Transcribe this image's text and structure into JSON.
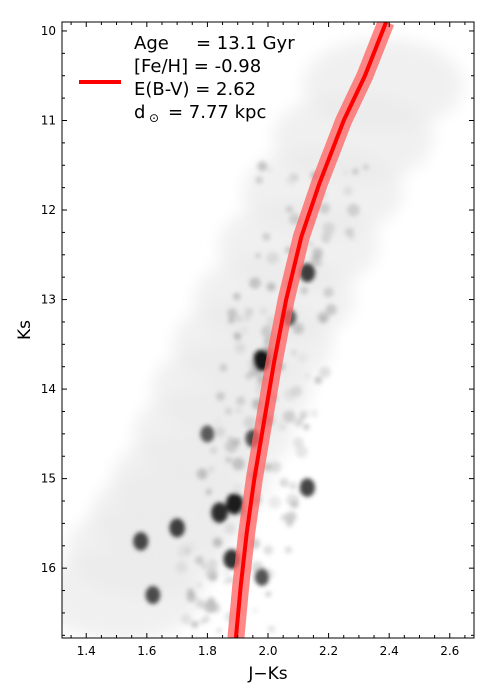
{
  "chart_data": {
    "type": "line",
    "title": "",
    "xlabel": "J−Ks",
    "ylabel": "Ks",
    "xlim": [
      1.32,
      2.68
    ],
    "ylim": [
      16.78,
      9.9
    ],
    "y_inverted": true,
    "x_ticks": [
      1.4,
      1.6,
      1.8,
      2.0,
      2.2,
      2.4,
      2.6
    ],
    "x_tick_labels": [
      "1.4",
      "1.6",
      "1.8",
      "2.0",
      "2.2",
      "2.4",
      "2.6"
    ],
    "y_ticks": [
      10,
      11,
      12,
      13,
      14,
      15,
      16
    ],
    "y_tick_labels": [
      "10",
      "11",
      "12",
      "13",
      "14",
      "15",
      "16"
    ],
    "grid": false,
    "legend_position": "top-left",
    "legend": {
      "age": {
        "label": "Age",
        "value": "= 13.1 Gyr"
      },
      "feh": "[Fe/H] = -0.98",
      "ebv": "E(B-V) = 2.62",
      "dist": {
        "label": "d",
        "sub": "⊙",
        "value": "= 7.77 kpc"
      }
    },
    "series": [
      {
        "kind": "isochrone",
        "color": "#ff0000",
        "band_color": "#ff6060",
        "points": [
          {
            "x": 1.894,
            "y": 16.78
          },
          {
            "x": 1.91,
            "y": 16.2
          },
          {
            "x": 1.93,
            "y": 15.6
          },
          {
            "x": 1.955,
            "y": 15.0
          },
          {
            "x": 1.985,
            "y": 14.4
          },
          {
            "x": 2.02,
            "y": 13.7
          },
          {
            "x": 2.06,
            "y": 13.0
          },
          {
            "x": 2.11,
            "y": 12.3
          },
          {
            "x": 2.17,
            "y": 11.7
          },
          {
            "x": 2.25,
            "y": 11.0
          },
          {
            "x": 2.32,
            "y": 10.5
          },
          {
            "x": 2.39,
            "y": 9.9
          }
        ]
      }
    ],
    "density_background": {
      "kind": "hess-diagram contours",
      "colormap": "greys",
      "clumps": [
        {
          "x": 1.98,
          "y": 13.68,
          "w": 1.0
        },
        {
          "x": 1.89,
          "y": 15.28,
          "w": 0.95
        },
        {
          "x": 1.84,
          "y": 15.38,
          "w": 0.85
        },
        {
          "x": 1.88,
          "y": 15.9,
          "w": 0.8
        },
        {
          "x": 2.13,
          "y": 12.7,
          "w": 0.7
        },
        {
          "x": 1.95,
          "y": 14.55,
          "w": 0.6
        },
        {
          "x": 2.13,
          "y": 15.1,
          "w": 0.65
        },
        {
          "x": 1.7,
          "y": 15.55,
          "w": 0.7
        },
        {
          "x": 1.58,
          "y": 15.7,
          "w": 0.65
        },
        {
          "x": 1.62,
          "y": 16.3,
          "w": 0.6
        },
        {
          "x": 1.98,
          "y": 16.1,
          "w": 0.55
        },
        {
          "x": 1.8,
          "y": 14.5,
          "w": 0.5
        },
        {
          "x": 2.07,
          "y": 13.2,
          "w": 0.5
        }
      ]
    }
  }
}
